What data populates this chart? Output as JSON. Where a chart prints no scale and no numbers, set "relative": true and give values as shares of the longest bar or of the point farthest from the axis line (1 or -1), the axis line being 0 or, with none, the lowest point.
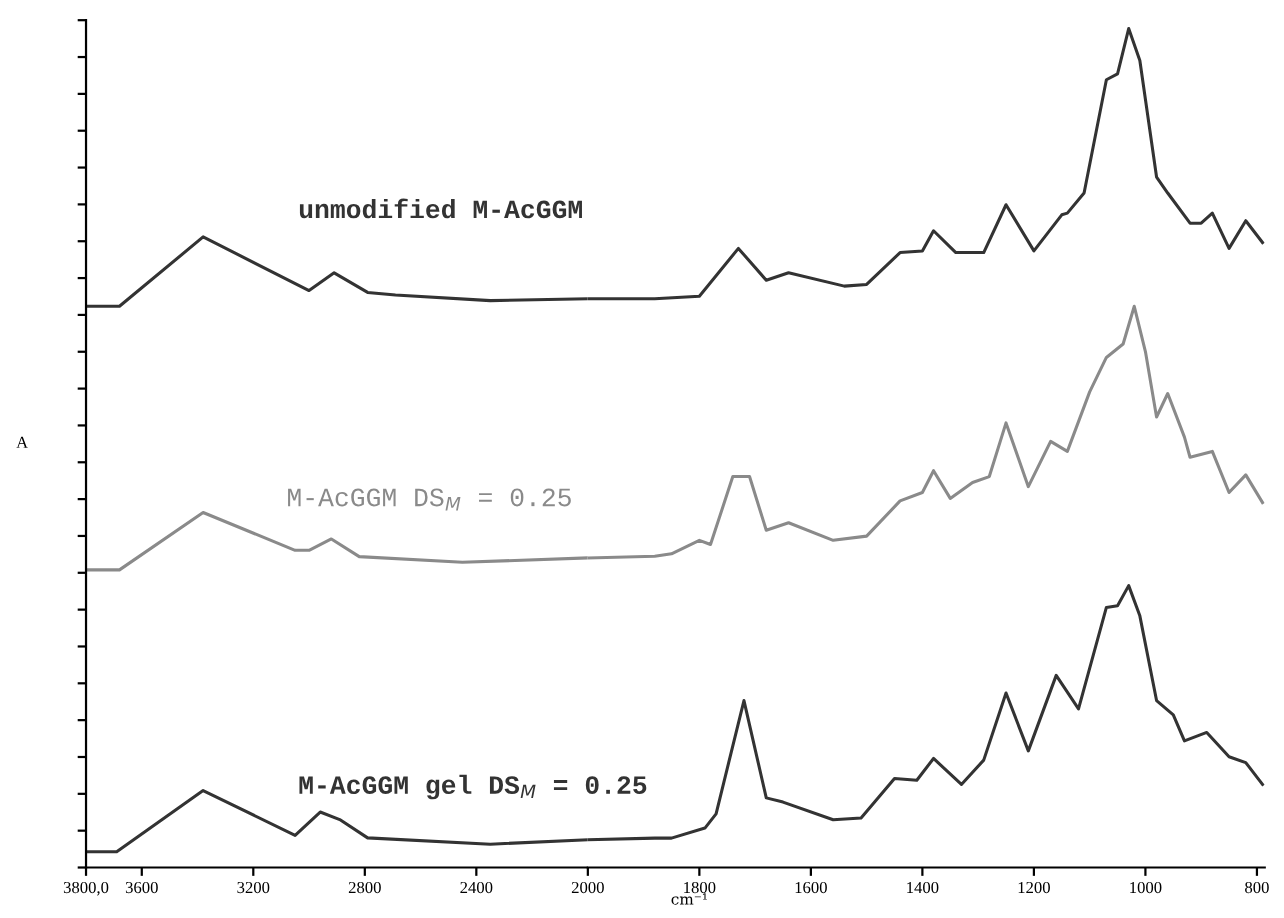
{
  "chart_data": [
    {
      "type": "line",
      "relative": true,
      "ylabel": "A",
      "xlim": [
        3800,
        2000
      ],
      "xticks": [
        {
          "value": 3800,
          "label": "3800,0"
        },
        3600,
        3200,
        2800,
        2400,
        2000
      ],
      "tick_labels": "x",
      "grid": false,
      "legend": false,
      "marker": "none",
      "line_style": "solid",
      "series": [
        {
          "name": "unmodified M-AcGGM",
          "color": "#333333",
          "x": [
            3800,
            3680,
            3380,
            3000,
            2910,
            2790,
            2690,
            2350,
            2000
          ],
          "values": [
            0.89,
            0.89,
            1.0,
            0.915,
            0.943,
            0.912,
            0.908,
            0.899,
            0.902
          ]
        },
        {
          "name": "M-AcGGM DS$_{M}$ = 0.25",
          "color": "#8a8a8a",
          "x": [
            3800,
            3680,
            3380,
            3050,
            3000,
            2920,
            2820,
            2450,
            2000
          ],
          "values": [
            0.472,
            0.472,
            0.563,
            0.503,
            0.503,
            0.521,
            0.493,
            0.484,
            0.491
          ]
        },
        {
          "name": "M-AcGGM gel DS$_{M}$ = 0.25",
          "color": "#333333",
          "x": [
            3800,
            3690,
            3380,
            3050,
            2960,
            2890,
            2790,
            2350,
            2000
          ],
          "values": [
            0.025,
            0.025,
            0.122,
            0.051,
            0.088,
            0.076,
            0.047,
            0.037,
            0.044
          ]
        }
      ]
    },
    {
      "type": "line",
      "relative": true,
      "xlabel": "cm⁻¹",
      "xlim": [
        2000,
        786
      ],
      "xticks": [
        1800,
        1600,
        1400,
        1200,
        1000,
        800
      ],
      "tick_labels": "x",
      "grid": false,
      "legend": false,
      "marker": "none",
      "line_style": "solid",
      "series": [
        {
          "color": "#333333",
          "x": [
            2000,
            1880,
            1800,
            1730,
            1680,
            1640,
            1540,
            1500,
            1440,
            1400,
            1380,
            1340,
            1290,
            1250,
            1200,
            1150,
            1140,
            1110,
            1070,
            1050,
            1030,
            1010,
            980,
            960,
            920,
            900,
            880,
            850,
            820,
            790
          ],
          "values": [
            0.678,
            0.678,
            0.681,
            0.738,
            0.7,
            0.709,
            0.693,
            0.695,
            0.733,
            0.735,
            0.759,
            0.733,
            0.733,
            0.79,
            0.735,
            0.778,
            0.78,
            0.804,
            0.939,
            0.946,
            1.0,
            0.962,
            0.823,
            0.804,
            0.768,
            0.768,
            0.78,
            0.738,
            0.771,
            0.745
          ]
        },
        {
          "color": "#8a8a8a",
          "x": [
            2000,
            1880,
            1850,
            1800,
            1780,
            1740,
            1710,
            1680,
            1640,
            1560,
            1500,
            1440,
            1400,
            1380,
            1350,
            1310,
            1280,
            1250,
            1210,
            1170,
            1140,
            1100,
            1070,
            1040,
            1020,
            1000,
            980,
            960,
            930,
            920,
            880,
            850,
            820,
            790
          ],
          "values": [
            0.369,
            0.371,
            0.374,
            0.39,
            0.385,
            0.466,
            0.466,
            0.402,
            0.411,
            0.39,
            0.395,
            0.437,
            0.447,
            0.473,
            0.44,
            0.459,
            0.466,
            0.53,
            0.454,
            0.508,
            0.496,
            0.567,
            0.608,
            0.624,
            0.669,
            0.615,
            0.537,
            0.565,
            0.513,
            0.489,
            0.496,
            0.447,
            0.468,
            0.435
          ]
        },
        {
          "color": "#333333",
          "x": [
            2000,
            1880,
            1850,
            1790,
            1770,
            1720,
            1680,
            1650,
            1560,
            1510,
            1450,
            1410,
            1380,
            1330,
            1290,
            1250,
            1210,
            1160,
            1120,
            1070,
            1050,
            1030,
            1010,
            980,
            950,
            930,
            890,
            850,
            820,
            790
          ],
          "values": [
            0.033,
            0.035,
            0.035,
            0.047,
            0.064,
            0.199,
            0.083,
            0.078,
            0.057,
            0.059,
            0.106,
            0.104,
            0.13,
            0.099,
            0.128,
            0.208,
            0.139,
            0.229,
            0.189,
            0.31,
            0.312,
            0.336,
            0.3,
            0.199,
            0.182,
            0.151,
            0.161,
            0.132,
            0.125,
            0.099
          ]
        }
      ]
    }
  ]
}
